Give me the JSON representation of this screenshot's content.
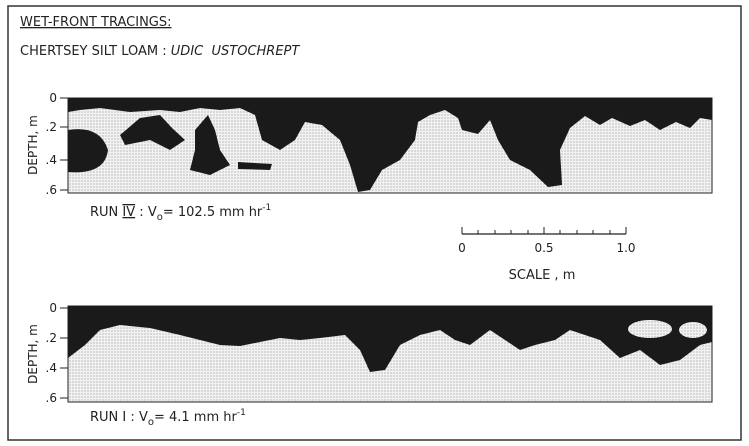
{
  "header": {
    "title": "WET-FRONT TRACINGS:",
    "soil": "CHERTSEY SILT LOAM :",
    "classification": "UDIC  USTOCHREPT"
  },
  "panels": [
    {
      "axis_label": "DEPTH, m",
      "ticks": [
        "0",
        ".2",
        ".4",
        ".6"
      ],
      "run": {
        "prefix": "RUN",
        "number": "IV",
        "separator": ":",
        "symbol": "V",
        "subscript": "o",
        "rate": "= 102.5 mm hr",
        "exponent": "-1"
      }
    },
    {
      "axis_label": "DEPTH, m",
      "ticks": [
        "0",
        ".2",
        ".4",
        ".6"
      ],
      "run": {
        "prefix": "RUN",
        "number": "I",
        "separator": ":",
        "symbol": "V",
        "subscript": "o",
        "rate": "= 4.1 mm hr",
        "exponent": "-1"
      }
    }
  ],
  "scale": {
    "ticks": [
      "0",
      "0.5",
      "1.0"
    ],
    "label": "SCALE , m"
  }
}
